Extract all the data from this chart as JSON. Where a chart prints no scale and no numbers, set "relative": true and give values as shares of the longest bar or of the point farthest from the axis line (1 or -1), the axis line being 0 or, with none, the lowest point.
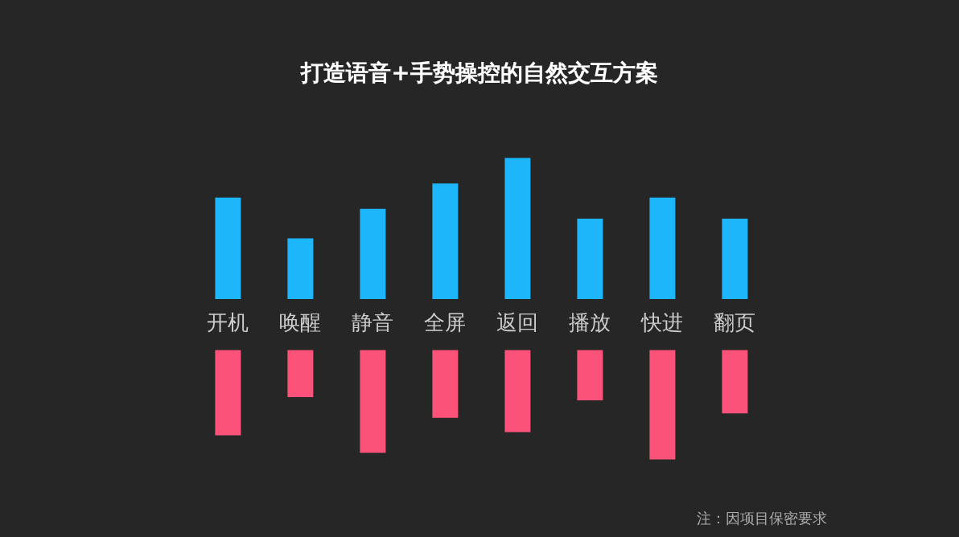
{
  "chart_data": [
    {
      "type": "bar",
      "title": "打造语音+手势操控的自然交互方案",
      "relative": true,
      "categories": [
        "开机",
        "唤醒",
        "静音",
        "全屏",
        "返回",
        "播放",
        "快进",
        "翻页"
      ],
      "series": [
        {
          "color": "#1eb6fb",
          "values": [
            0.72,
            0.43,
            0.64,
            0.82,
            1,
            0.57,
            0.72,
            0.57
          ]
        }
      ]
    },
    {
      "type": "bar",
      "relative": true,
      "annotations": [
        "注：因项目保密要求"
      ],
      "categories": [
        null,
        null,
        null,
        null,
        null,
        null,
        null,
        null
      ],
      "series": [
        {
          "color": "#fb5279",
          "values": [
            -0.78,
            -0.43,
            -0.94,
            -0.62,
            -0.75,
            -0.46,
            -1,
            -0.58
          ]
        }
      ]
    }
  ]
}
